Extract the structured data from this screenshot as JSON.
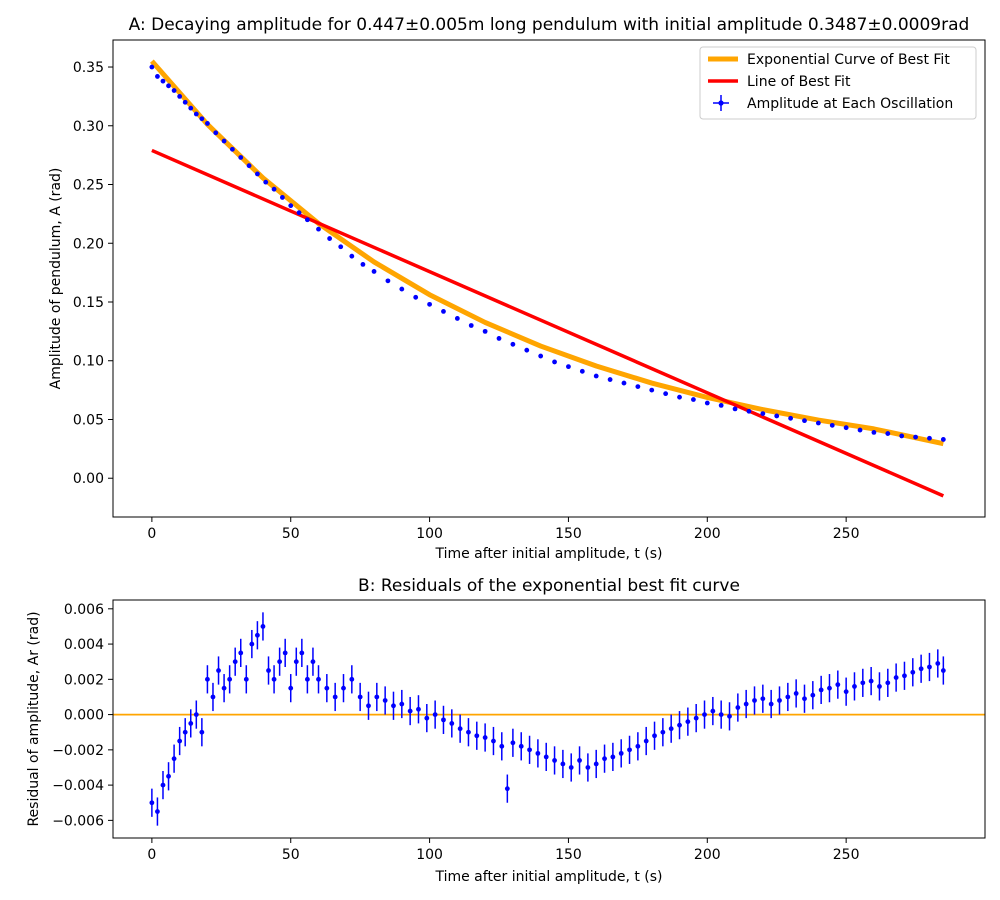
{
  "chart_data": [
    {
      "id": "A",
      "type": "scatter",
      "title": "A: Decaying amplitude for 0.447±0.005m long pendulum with initial amplitude 0.3487±0.0009rad",
      "xlabel": "Time after initial amplitude, t (s)",
      "ylabel": "Amplitude of pendulum, A (rad)",
      "xlim": [
        -14,
        300
      ],
      "ylim": [
        -0.033,
        0.373
      ],
      "xticks": [
        0,
        50,
        100,
        150,
        200,
        250
      ],
      "xtick_labels": [
        "0",
        "50",
        "100",
        "150",
        "200",
        "250"
      ],
      "yticks": [
        0.0,
        0.05,
        0.1,
        0.15,
        0.2,
        0.25,
        0.3,
        0.35
      ],
      "ytick_labels": [
        "0.00",
        "0.05",
        "0.10",
        "0.15",
        "0.20",
        "0.25",
        "0.30",
        "0.35"
      ],
      "grid": false,
      "legend_position": "top-right",
      "legend": [
        "Exponential Curve of Best Fit",
        "Line of Best Fit",
        "Amplitude at Each Oscillation"
      ],
      "series": [
        {
          "name": "Exponential Curve of Best Fit",
          "kind": "line",
          "color": "#ffa500",
          "x": [
            0,
            20,
            40,
            60,
            80,
            100,
            120,
            140,
            160,
            180,
            200,
            220,
            240,
            260,
            285
          ],
          "y": [
            0.355,
            0.3012,
            0.2556,
            0.2169,
            0.1841,
            0.1562,
            0.1326,
            0.1125,
            0.0955,
            0.081,
            0.0688,
            0.0584,
            0.0495,
            0.042,
            0.0294
          ]
        },
        {
          "name": "Line of Best Fit",
          "kind": "line",
          "color": "#ff0000",
          "x": [
            0,
            285
          ],
          "y": [
            0.279,
            -0.015
          ]
        },
        {
          "name": "Amplitude at Each Oscillation",
          "kind": "scatter_errorbar",
          "color": "#0000ff",
          "x": [
            0,
            2,
            4,
            6,
            8,
            10,
            12,
            14,
            16,
            18,
            20,
            23,
            26,
            29,
            32,
            35,
            38,
            41,
            44,
            47,
            50,
            53,
            56,
            60,
            64,
            68,
            72,
            76,
            80,
            85,
            90,
            95,
            100,
            105,
            110,
            115,
            120,
            125,
            130,
            135,
            140,
            145,
            150,
            155,
            160,
            165,
            170,
            175,
            180,
            185,
            190,
            195,
            200,
            205,
            210,
            215,
            220,
            225,
            230,
            235,
            240,
            245,
            250,
            255,
            260,
            265,
            270,
            275,
            280,
            285
          ],
          "y": [
            0.35,
            0.342,
            0.338,
            0.334,
            0.33,
            0.325,
            0.32,
            0.315,
            0.31,
            0.306,
            0.302,
            0.294,
            0.287,
            0.28,
            0.273,
            0.266,
            0.259,
            0.252,
            0.246,
            0.239,
            0.232,
            0.226,
            0.22,
            0.212,
            0.204,
            0.197,
            0.189,
            0.182,
            0.176,
            0.168,
            0.161,
            0.154,
            0.148,
            0.142,
            0.136,
            0.13,
            0.125,
            0.119,
            0.114,
            0.109,
            0.104,
            0.099,
            0.095,
            0.091,
            0.087,
            0.084,
            0.081,
            0.078,
            0.075,
            0.072,
            0.069,
            0.067,
            0.064,
            0.062,
            0.059,
            0.057,
            0.055,
            0.053,
            0.051,
            0.049,
            0.047,
            0.045,
            0.043,
            0.041,
            0.039,
            0.038,
            0.036,
            0.035,
            0.034,
            0.033
          ],
          "y_error": 0.0015
        }
      ]
    },
    {
      "id": "B",
      "type": "scatter",
      "title": "B: Residuals of the exponential best fit curve",
      "xlabel": "Time after initial amplitude, t (s)",
      "ylabel": "Residual of amplitude, Ar (rad)",
      "xlim": [
        -14,
        300
      ],
      "ylim": [
        -0.007,
        0.0065
      ],
      "xticks": [
        0,
        50,
        100,
        150,
        200,
        250
      ],
      "xtick_labels": [
        "0",
        "50",
        "100",
        "150",
        "200",
        "250"
      ],
      "yticks": [
        -0.006,
        -0.004,
        -0.002,
        0.0,
        0.002,
        0.004,
        0.006
      ],
      "ytick_labels": [
        "−0.006",
        "−0.004",
        "−0.002",
        "0.000",
        "0.002",
        "0.004",
        "0.006"
      ],
      "grid": false,
      "series": [
        {
          "kind": "hline",
          "color": "#ffa500",
          "y": 0.0
        },
        {
          "kind": "scatter_errorbar",
          "color": "#0000ff",
          "y_error": 0.0008,
          "x": [
            0,
            2,
            4,
            6,
            8,
            10,
            12,
            14,
            16,
            18,
            20,
            22,
            24,
            26,
            28,
            30,
            32,
            34,
            36,
            38,
            40,
            42,
            44,
            46,
            48,
            50,
            52,
            54,
            56,
            58,
            60,
            63,
            66,
            69,
            72,
            75,
            78,
            81,
            84,
            87,
            90,
            93,
            96,
            99,
            102,
            105,
            108,
            111,
            114,
            117,
            120,
            123,
            126,
            128,
            130,
            133,
            136,
            139,
            142,
            145,
            148,
            151,
            154,
            157,
            160,
            163,
            166,
            169,
            172,
            175,
            178,
            181,
            184,
            187,
            190,
            193,
            196,
            199,
            202,
            205,
            208,
            211,
            214,
            217,
            220,
            223,
            226,
            229,
            232,
            235,
            238,
            241,
            244,
            247,
            250,
            253,
            256,
            259,
            262,
            265,
            268,
            271,
            274,
            277,
            280,
            283,
            285
          ],
          "y": [
            -0.005,
            -0.0055,
            -0.004,
            -0.0035,
            -0.0025,
            -0.0015,
            -0.001,
            -0.0005,
            0.0,
            -0.001,
            0.002,
            0.001,
            0.0025,
            0.0015,
            0.002,
            0.003,
            0.0035,
            0.002,
            0.004,
            0.0045,
            0.005,
            0.0025,
            0.002,
            0.003,
            0.0035,
            0.0015,
            0.003,
            0.0035,
            0.002,
            0.003,
            0.002,
            0.0015,
            0.001,
            0.0015,
            0.002,
            0.001,
            0.0005,
            0.001,
            0.0008,
            0.0005,
            0.0006,
            0.0002,
            0.0003,
            -0.0002,
            0.0,
            -0.0003,
            -0.0005,
            -0.0008,
            -0.001,
            -0.0012,
            -0.0013,
            -0.0015,
            -0.0018,
            -0.0042,
            -0.0016,
            -0.0018,
            -0.002,
            -0.0022,
            -0.0024,
            -0.0026,
            -0.0028,
            -0.003,
            -0.0026,
            -0.003,
            -0.0028,
            -0.0025,
            -0.0024,
            -0.0022,
            -0.002,
            -0.0018,
            -0.0015,
            -0.0012,
            -0.001,
            -0.0008,
            -0.0006,
            -0.0004,
            -0.0002,
            0.0,
            0.0002,
            0.0,
            -0.0001,
            0.0004,
            0.0006,
            0.0008,
            0.0009,
            0.0006,
            0.0008,
            0.001,
            0.0012,
            0.0009,
            0.0011,
            0.0014,
            0.0015,
            0.0017,
            0.0013,
            0.0016,
            0.0018,
            0.0019,
            0.0016,
            0.0018,
            0.0021,
            0.0022,
            0.0024,
            0.0026,
            0.0027,
            0.0029,
            0.0025
          ]
        }
      ]
    }
  ]
}
